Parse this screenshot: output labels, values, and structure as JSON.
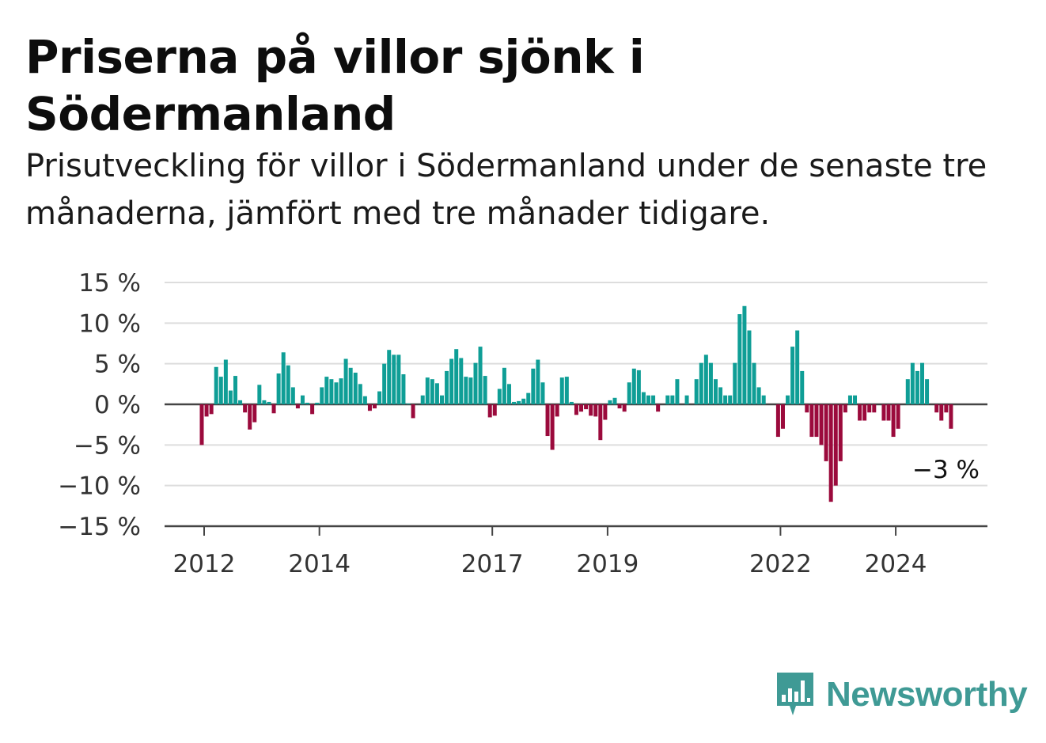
{
  "title": "Priserna på villor sjönk i Södermanland",
  "subtitle": "Prisutveckling för villor i Södermanland under de senaste tre månaderna, jämfört med tre månader tidigare.",
  "brand": {
    "name": "Newsworthy",
    "color": "#3f9a95"
  },
  "colors": {
    "positive": "#0f9e96",
    "negative": "#9b0a3c",
    "grid": "#dddddd",
    "axis": "#444444"
  },
  "chart_data": {
    "type": "bar",
    "title": "Priserna på villor sjönk i Södermanland",
    "x_start": "2012-01",
    "x_ticks": [
      "2012",
      "2014",
      "2017",
      "2019",
      "2022",
      "2024"
    ],
    "y_ticks": [
      "15 %",
      "10 %",
      "5 %",
      "0 %",
      "−5 %",
      "−10 %",
      "−15 %"
    ],
    "ylim": [
      -15,
      15
    ],
    "grid": true,
    "end_label": "−3 %",
    "values": [
      -5,
      -1.5,
      -1.2,
      4.6,
      3.4,
      5.5,
      1.7,
      3.5,
      0.5,
      -1,
      -3.1,
      -2.2,
      2.4,
      0.5,
      0.3,
      -1.1,
      3.8,
      6.4,
      4.8,
      2.1,
      -0.5,
      1.1,
      0.2,
      -1.2,
      0.2,
      2.1,
      3.4,
      3.1,
      2.7,
      3.2,
      5.6,
      4.5,
      3.9,
      2.5,
      1,
      -0.8,
      -0.5,
      1.6,
      5,
      6.7,
      6.1,
      6.1,
      3.7,
      0.1,
      -1.7,
      0,
      1.1,
      3.3,
      3.1,
      2.6,
      1.1,
      4.1,
      5.6,
      6.8,
      5.7,
      3.4,
      3.3,
      5.1,
      7.1,
      3.5,
      -1.6,
      -1.4,
      1.9,
      4.5,
      2.5,
      0.3,
      0.4,
      0.7,
      1.4,
      4.4,
      5.5,
      2.7,
      -3.9,
      -5.6,
      -1.5,
      3.3,
      3.4,
      0.3,
      -1.3,
      -0.9,
      -0.6,
      -1.4,
      -1.5,
      -4.4,
      -1.9,
      0.5,
      0.8,
      -0.5,
      -0.9,
      2.7,
      4.4,
      4.2,
      1.5,
      1.1,
      1.1,
      -0.9,
      0,
      1.1,
      1.1,
      3.1,
      0,
      1.1,
      0,
      3.1,
      5.1,
      6.1,
      5.1,
      3.1,
      2.1,
      1.1,
      1.1,
      5.1,
      11.1,
      12.1,
      9.1,
      5.1,
      2.1,
      1.1,
      0,
      0,
      -4,
      -3,
      1.1,
      7.1,
      9.1,
      4.1,
      -1,
      -4,
      -4,
      -5,
      -7,
      -12,
      -10,
      -7,
      -1,
      1.1,
      1.1,
      -2,
      -2,
      -1,
      -1,
      0,
      -2,
      -2,
      -4,
      -3,
      0,
      3.1,
      5.1,
      4.1,
      5.1,
      3.1,
      0,
      -1,
      -2,
      -1,
      -3
    ]
  }
}
